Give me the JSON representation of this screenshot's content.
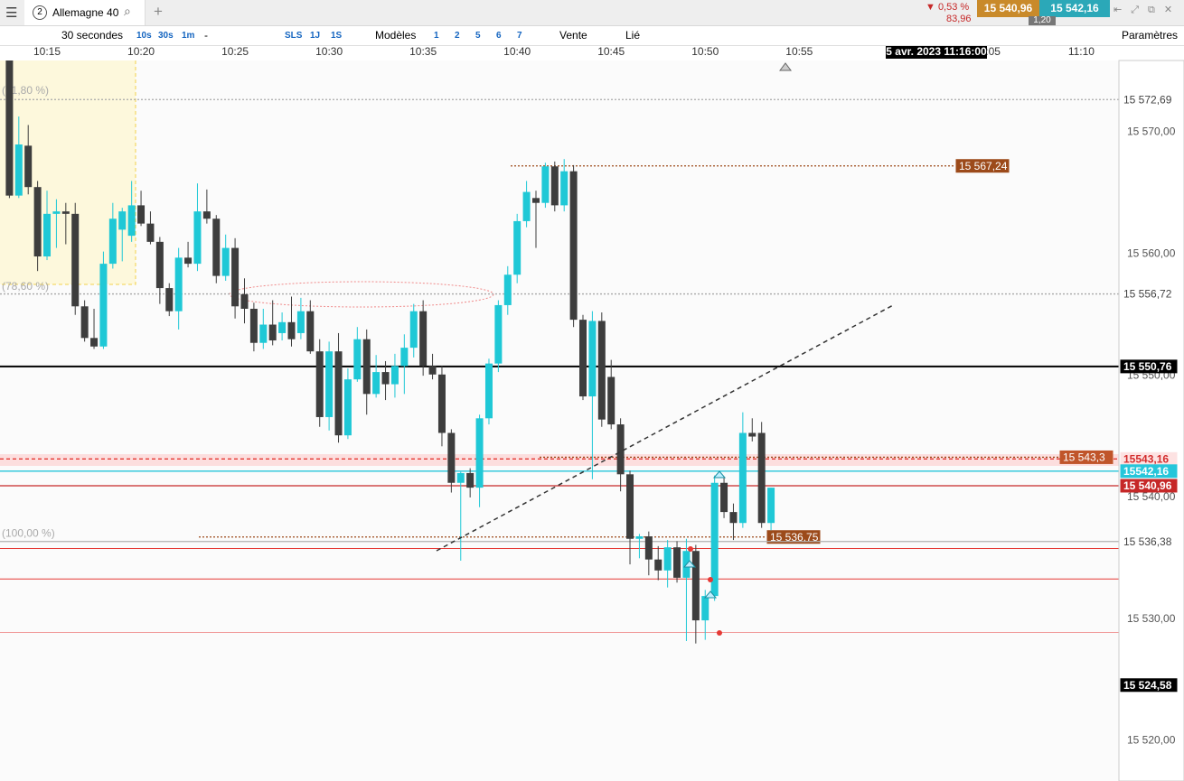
{
  "toolbar": {
    "tab_number": "2",
    "tab_title": "Allemagne 40",
    "change_pct": "▼ 0,53 %",
    "change_pts": "83,96",
    "sell": "15 540,96",
    "buy": "15 542,16",
    "spread": "1,20",
    "items": [
      "30 secondes",
      "10s",
      "30s",
      "1m",
      "-",
      "SLS",
      "1J",
      "1S",
      "Modèles",
      "1",
      "2",
      "5",
      "6",
      "7",
      "Vente",
      "Lié",
      "Paramètres"
    ]
  },
  "chart_data": {
    "type": "candlestick",
    "x": [
      13,
      13.5,
      14,
      14.5,
      15,
      15.5,
      16,
      16.5,
      17,
      17.5,
      18,
      18.5,
      19,
      19.5,
      20,
      20.5,
      21,
      21.5,
      22,
      22.5,
      23,
      23.5,
      24,
      24.5,
      25,
      25.5,
      26,
      26.5,
      27,
      27.5,
      28,
      28.5,
      29,
      29.5,
      30,
      30.5,
      31,
      31.5,
      32,
      32.5,
      33,
      33.5,
      34,
      34.5,
      35,
      35.5,
      36,
      36.5,
      37,
      37.5,
      38,
      38.5,
      39,
      39.5,
      40,
      40.5,
      41,
      41.5,
      42,
      42.5,
      43,
      43.5,
      44,
      44.5,
      45,
      45.5,
      46,
      46.5,
      47,
      47.5,
      48,
      48.5,
      49,
      49.5,
      50,
      50.5,
      51,
      51.5,
      52,
      52.5,
      53,
      53.5
    ],
    "open": [
      15576.0,
      15564.8,
      15568.9,
      15565.5,
      15559.8,
      15563.3,
      15563.5,
      15563.3,
      15555.7,
      15553.1,
      15552.4,
      15559.2,
      15562.0,
      15561.5,
      15564.0,
      15562.5,
      15561.0,
      15557.2,
      15555.3,
      15559.7,
      15559.2,
      15563.5,
      15562.9,
      15558.2,
      15560.5,
      15556.7,
      15555.5,
      15552.7,
      15554.2,
      15553.5,
      15554.4,
      15553.5,
      15555.3,
      15552.0,
      15546.6,
      15552.0,
      15545.1,
      15549.7,
      15553.0,
      15548.5,
      15550.3,
      15549.3,
      15550.8,
      15552.3,
      15555.3,
      15550.8,
      15550.1,
      15545.3,
      15541.2,
      15542.0,
      15540.8,
      15546.5,
      15551.0,
      15555.8,
      15558.3,
      15562.7,
      15564.6,
      15564.2,
      15567.2,
      15564.0,
      15566.8,
      15554.6,
      15548.3,
      15554.5,
      15549.9,
      15546.0,
      15541.9,
      15536.6,
      15536.8,
      15534.9,
      15534.0,
      15535.9,
      15533.4,
      15535.6,
      15529.9,
      15531.9,
      15541.2,
      15538.8,
      15537.9,
      15545.3,
      15545.3,
      15537.9
    ],
    "high": [
      15576.5,
      15571.3,
      15570.6,
      15566.0,
      15565.2,
      15564.5,
      15564.2,
      15564.2,
      15556.2,
      15555.5,
      15560.2,
      15564.2,
      15563.8,
      15566.0,
      15565.2,
      15563.5,
      15561.4,
      15557.6,
      15560.5,
      15561.0,
      15565.8,
      15565.3,
      15563.2,
      15561.6,
      15561.3,
      15558.0,
      15556.0,
      15555.5,
      15556.2,
      15555.2,
      15556.5,
      15556.4,
      15556.2,
      15553.0,
      15552.8,
      15553.5,
      15550.6,
      15554.0,
      15553.8,
      15551.7,
      15551.2,
      15551.8,
      15553.4,
      15555.9,
      15556.2,
      15551.8,
      15550.8,
      15545.6,
      15542.1,
      15542.4,
      15546.8,
      15551.4,
      15556.2,
      15559.0,
      15563.3,
      15566.0,
      15565.2,
      15567.5,
      15567.6,
      15567.8,
      15567.3,
      15555.0,
      15555.3,
      15555.2,
      15551.3,
      15546.5,
      15542.2,
      15537.0,
      15537.2,
      15536.0,
      15536.5,
      15536.4,
      15536.6,
      15536.1,
      15532.4,
      15541.8,
      15541.6,
      15539.5,
      15547.0,
      15546.5,
      15546.2,
      15540.8
    ],
    "low": [
      15564.6,
      15564.6,
      15564.9,
      15558.6,
      15559.5,
      15560.5,
      15560.8,
      15555.0,
      15552.8,
      15552.2,
      15552.2,
      15558.8,
      15559.4,
      15561.0,
      15562.3,
      15560.8,
      15555.9,
      15554.9,
      15553.8,
      15558.9,
      15558.6,
      15562.5,
      15557.6,
      15557.8,
      15554.7,
      15554.3,
      15552.0,
      15552.2,
      15552.5,
      15552.9,
      15552.4,
      15553.0,
      15551.8,
      15545.8,
      15545.5,
      15544.5,
      15544.8,
      15549.5,
      15546.8,
      15548.2,
      15548.0,
      15548.2,
      15548.5,
      15551.5,
      15550.0,
      15549.7,
      15544.2,
      15540.4,
      15534.8,
      15540.0,
      15539.2,
      15546.0,
      15550.3,
      15555.0,
      15557.6,
      15562.2,
      15560.5,
      15563.8,
      15563.5,
      15563.5,
      15554.0,
      15548.0,
      15541.5,
      15545.8,
      15545.6,
      15540.5,
      15534.5,
      15535.0,
      15533.6,
      15533.2,
      15532.6,
      15533.0,
      15528.2,
      15528.0,
      15528.3,
      15531.5,
      15538.3,
      15536.5,
      15537.5,
      15544.6,
      15537.5,
      15537.3
    ],
    "close": [
      15564.8,
      15569.0,
      15565.5,
      15559.8,
      15563.3,
      15563.5,
      15563.3,
      15555.7,
      15553.1,
      15552.4,
      15559.2,
      15562.9,
      15563.5,
      15564.0,
      15562.5,
      15561.0,
      15557.2,
      15555.3,
      15559.7,
      15559.2,
      15563.5,
      15562.9,
      15558.2,
      15560.5,
      15555.7,
      15555.5,
      15552.7,
      15554.2,
      15552.9,
      15554.4,
      15553.0,
      15555.3,
      15552.0,
      15546.6,
      15552.0,
      15545.1,
      15549.7,
      15553.0,
      15548.5,
      15550.3,
      15549.3,
      15550.8,
      15552.3,
      15555.3,
      15550.8,
      15550.1,
      15545.3,
      15541.2,
      15542.0,
      15540.8,
      15546.5,
      15551.0,
      15555.8,
      15558.3,
      15562.7,
      15565.1,
      15564.2,
      15567.2,
      15564.0,
      15566.8,
      15554.6,
      15548.3,
      15554.5,
      15546.4,
      15546.0,
      15541.9,
      15536.6,
      15536.8,
      15534.9,
      15534.0,
      15535.9,
      15533.4,
      15535.6,
      15529.9,
      15531.9,
      15541.2,
      15538.8,
      15537.9,
      15545.3,
      15545.0,
      15537.9,
      15540.8
    ],
    "up_color": "#1fc8d6",
    "down_color": "#3d3d3d",
    "xlim": [
      12.5,
      72
    ],
    "xticks": [
      {
        "value": 15,
        "label": "10:15"
      },
      {
        "value": 20,
        "label": "10:20"
      },
      {
        "value": 25,
        "label": "10:25"
      },
      {
        "value": 30,
        "label": "10:30"
      },
      {
        "value": 35,
        "label": "10:35"
      },
      {
        "value": 40,
        "label": "10:40"
      },
      {
        "value": 45,
        "label": "10:45"
      },
      {
        "value": 50,
        "label": "10:50"
      },
      {
        "value": 55,
        "label": "10:55"
      },
      {
        "value": 65,
        "label": "11:05"
      },
      {
        "value": 70,
        "label": "11:10"
      }
    ],
    "ylim": [
      15516.7,
      15575.9
    ],
    "yticks": [
      {
        "value": 15520,
        "label": "15 520,00"
      },
      {
        "value": 15530,
        "label": "15 530,00"
      },
      {
        "value": 15540,
        "label": "15 540,00"
      },
      {
        "value": 15550,
        "label": "15 550,00"
      },
      {
        "value": 15560,
        "label": "15 560,00"
      },
      {
        "value": 15570,
        "label": "15 570,00"
      }
    ],
    "fib_labels": [
      {
        "value": 15573.4,
        "label": "(61,80 %)"
      },
      {
        "value": 15557.3,
        "label": "(78,60 %)"
      },
      {
        "value": 15537.0,
        "label": "(100,00 %)"
      }
    ],
    "levels": [
      {
        "value": 15572.69,
        "label": "15 572,69",
        "color": "#a8a8a8",
        "style": "dotted",
        "label_style": "axis",
        "fill": "#ffffff",
        "text_color": "#444444"
      },
      {
        "value": 15567.24,
        "label": "15 567,24",
        "color": "#9c4a1a",
        "style": "dotted",
        "label_style": "inline",
        "fill": "#9c4a1a",
        "text_color": "#ffffff"
      },
      {
        "value": 15556.72,
        "label": "15 556,72",
        "color": "#a8a8a8",
        "style": "dotted",
        "label_style": "axis",
        "fill": "#ffffff",
        "text_color": "#444444"
      },
      {
        "value": 15550.76,
        "label": "15 550,76",
        "color": "#000000",
        "style": "solid",
        "label_style": "axis",
        "fill": "#000000",
        "text_color": "#ffffff"
      },
      {
        "value": 15543.16,
        "label": "15543,16",
        "color": "#e53935",
        "style": "dashed",
        "label_style": "axis",
        "fill": "#fde2e2",
        "text_color": "#d32f2f"
      },
      {
        "value": 15543.3,
        "label": "15 543,3",
        "color": "#9c4a1a",
        "style": "dotted",
        "label_style": "inline",
        "fill": "#c0552a",
        "text_color": "#ffffff"
      },
      {
        "value": 15542.16,
        "label": "15542,16",
        "color": "#26c6da",
        "style": "solid",
        "label_style": "axis",
        "fill": "#26c6da",
        "text_color": "#ffffff"
      },
      {
        "value": 15540.96,
        "label": "15 540,96",
        "color": "#c62828",
        "style": "solid",
        "label_style": "axis",
        "fill": "#c62828",
        "text_color": "#ffffff"
      },
      {
        "value": 15536.75,
        "label": "15 536,75",
        "color": "#9c4a1a",
        "style": "dotted",
        "label_style": "inline",
        "fill": "#9c4a1a",
        "text_color": "#ffffff"
      },
      {
        "value": 15536.38,
        "label": "15 536,38",
        "color": "#b0b0b0",
        "style": "solid",
        "label_style": "axis",
        "fill": "#ffffff",
        "text_color": "#444444"
      },
      {
        "value": 15524.58,
        "label": "15 524,58",
        "color": "#000000",
        "style": "none",
        "label_style": "axis",
        "fill": "#000000",
        "text_color": "#ffffff"
      }
    ],
    "lines": [
      15535.8,
      15533.3,
      15528.9
    ],
    "crosshair_label": "5 avr. 2023 11:16:00"
  }
}
